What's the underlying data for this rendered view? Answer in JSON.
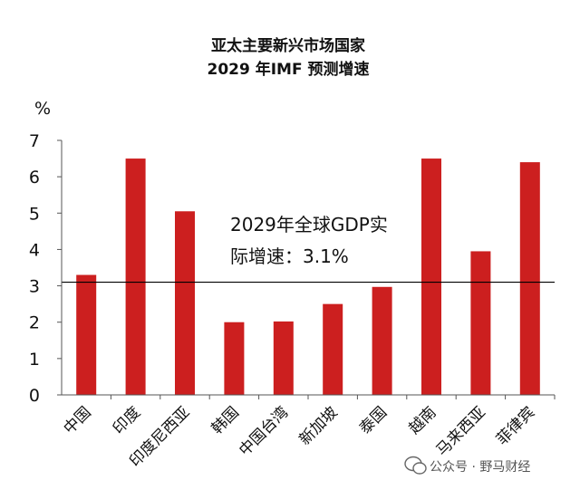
{
  "chart_data": {
    "type": "bar",
    "title": [
      "亚太主要新兴市场国家",
      "2029 年IMF 预测增速"
    ],
    "ylabel": "%",
    "ylim": [
      0,
      7
    ],
    "yticks": [
      "0",
      "1",
      "2",
      "3",
      "4",
      "5",
      "6",
      "7"
    ],
    "categories": [
      "中国",
      "印度",
      "印度尼西亚",
      "韩国",
      "中国台湾",
      "新加坡",
      "泰国",
      "越南",
      "马来西亚",
      "菲律宾"
    ],
    "values": [
      3.3,
      6.5,
      5.05,
      2.0,
      2.02,
      2.5,
      2.97,
      6.5,
      3.95,
      6.4
    ],
    "bar_color": "#cc1f1f",
    "reference_line": {
      "value": 3.1,
      "color": "#000000"
    },
    "annotation": [
      "2029年全球GDP实",
      "际增速：3.1%"
    ],
    "grid": false
  },
  "watermark": "公众号 · 野马财经",
  "watermark_icon": "wechat-icon"
}
